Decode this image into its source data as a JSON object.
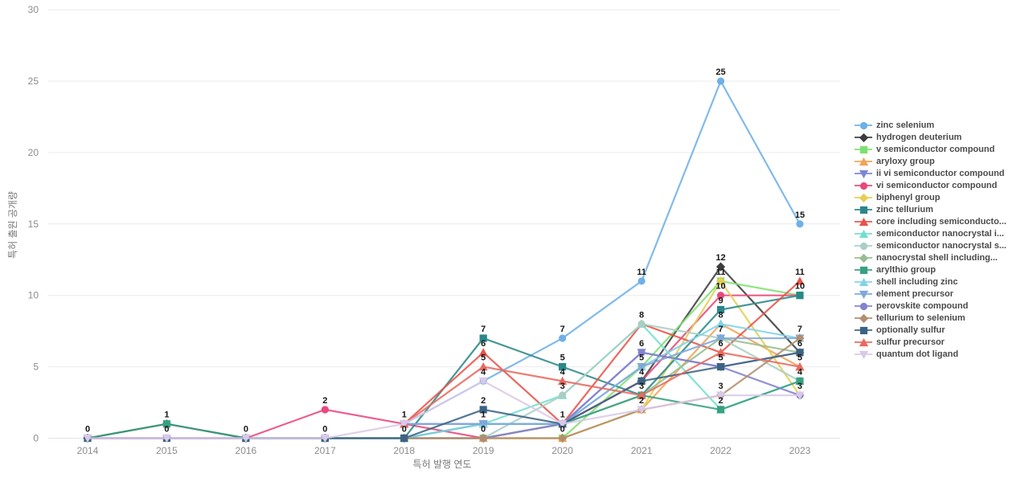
{
  "chart_data": {
    "type": "line",
    "title": "",
    "xlabel": "특허 발행 연도",
    "ylabel": "특허 출원 공개량",
    "x": [
      2014,
      2015,
      2016,
      2017,
      2018,
      2019,
      2020,
      2021,
      2022,
      2023
    ],
    "ylim": [
      0,
      30
    ],
    "ytick_step": 5,
    "grid": true,
    "legend_position": "right",
    "point_labels": true,
    "series": [
      {
        "name": "zinc selenium",
        "color": "#6fb0e8",
        "marker": "circle",
        "values": [
          null,
          null,
          null,
          null,
          1,
          4,
          7,
          11,
          25,
          15
        ]
      },
      {
        "name": "hydrogen deuterium",
        "color": "#3d3d3f",
        "marker": "diamond",
        "values": [
          0,
          1,
          0,
          0,
          0,
          0,
          1,
          4,
          12,
          6
        ]
      },
      {
        "name": "v semiconductor compound",
        "color": "#7ee070",
        "marker": "square",
        "values": [
          null,
          null,
          null,
          null,
          null,
          0,
          0,
          5,
          11,
          10
        ]
      },
      {
        "name": "aryloxy group",
        "color": "#f2a355",
        "marker": "triangle-up",
        "values": [
          null,
          null,
          null,
          null,
          null,
          0,
          0,
          2,
          8,
          5
        ]
      },
      {
        "name": "ii vi semiconductor compound",
        "color": "#7b85d6",
        "marker": "triangle-down",
        "values": [
          null,
          null,
          null,
          null,
          1,
          1,
          1,
          6,
          5,
          6
        ]
      },
      {
        "name": "vi semiconductor compound",
        "color": "#e8497c",
        "marker": "circle",
        "values": [
          0,
          0,
          0,
          2,
          1,
          0,
          1,
          4,
          10,
          10
        ]
      },
      {
        "name": "biphenyl group",
        "color": "#e3cf52",
        "marker": "diamond",
        "values": [
          null,
          null,
          null,
          null,
          null,
          null,
          0,
          2,
          11,
          3
        ]
      },
      {
        "name": "zinc tellurium",
        "color": "#2b8788",
        "marker": "square",
        "values": [
          null,
          null,
          null,
          null,
          0,
          7,
          5,
          3,
          9,
          10
        ]
      },
      {
        "name": "core including semiconducto...",
        "color": "#e8534a",
        "marker": "triangle-up",
        "values": [
          null,
          null,
          null,
          null,
          1,
          6,
          1,
          8,
          6,
          11
        ]
      },
      {
        "name": "semiconductor nanocrystal i...",
        "color": "#72dfcd",
        "marker": "triangle-up",
        "values": [
          null,
          null,
          null,
          null,
          0,
          1,
          3,
          8,
          2,
          4
        ]
      },
      {
        "name": "semiconductor nanocrystal s...",
        "color": "#a9cfc4",
        "marker": "circle",
        "values": [
          null,
          null,
          null,
          null,
          null,
          0,
          3,
          8,
          7,
          4
        ]
      },
      {
        "name": "nanocrystal shell including...",
        "color": "#97bd90",
        "marker": "diamond",
        "values": [
          null,
          null,
          null,
          null,
          null,
          0,
          1,
          3,
          7,
          6
        ]
      },
      {
        "name": "arylthio group",
        "color": "#38a181",
        "marker": "square",
        "values": [
          0,
          1,
          0,
          0,
          0,
          1,
          1,
          3,
          2,
          4
        ]
      },
      {
        "name": "shell including zinc",
        "color": "#82d3e8",
        "marker": "triangle-up",
        "values": [
          null,
          null,
          null,
          null,
          0,
          1,
          1,
          5,
          8,
          7
        ]
      },
      {
        "name": "element precursor",
        "color": "#7fa8dc",
        "marker": "triangle-down",
        "values": [
          null,
          null,
          null,
          null,
          1,
          1,
          1,
          5,
          7,
          7
        ]
      },
      {
        "name": "perovskite compound",
        "color": "#8282cf",
        "marker": "circle",
        "values": [
          null,
          null,
          null,
          null,
          null,
          0,
          1,
          6,
          5,
          3
        ]
      },
      {
        "name": "tellurium to selenium",
        "color": "#b38e6d",
        "marker": "diamond",
        "values": [
          null,
          null,
          null,
          null,
          0,
          0,
          0,
          2,
          3,
          7
        ]
      },
      {
        "name": "optionally sulfur",
        "color": "#3c6383",
        "marker": "square",
        "values": [
          0,
          0,
          0,
          0,
          0,
          2,
          1,
          4,
          5,
          6
        ]
      },
      {
        "name": "sulfur precursor",
        "color": "#e86a60",
        "marker": "triangle-up",
        "values": [
          null,
          null,
          null,
          null,
          1,
          5,
          4,
          3,
          6,
          5
        ]
      },
      {
        "name": "quantum dot ligand",
        "color": "#d9c9e8",
        "marker": "triangle-down",
        "values": [
          0,
          0,
          0,
          0,
          1,
          4,
          1,
          2,
          3,
          3
        ]
      }
    ]
  }
}
